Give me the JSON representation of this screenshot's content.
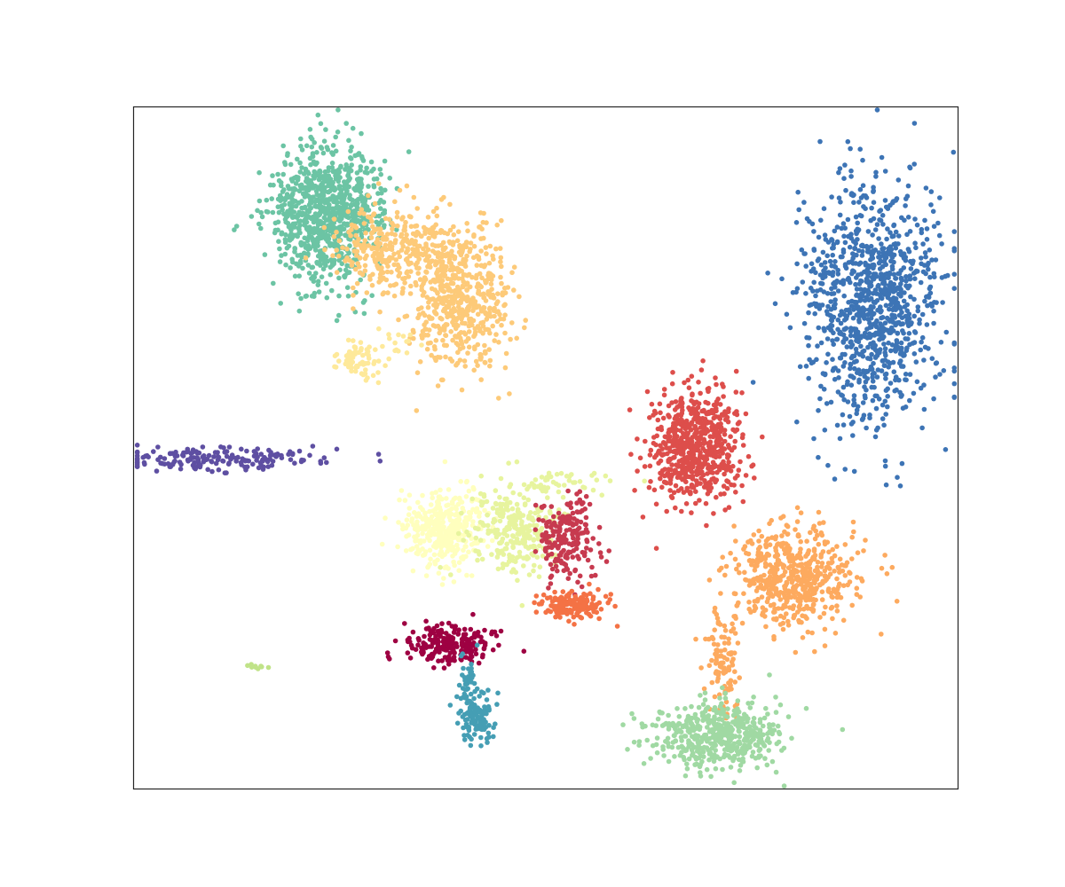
{
  "chart_data": {
    "type": "scatter",
    "title": "",
    "xlabel": "",
    "ylabel": "",
    "xlim": [
      0,
      100
    ],
    "ylim": [
      0,
      100
    ],
    "grid": false,
    "legend": "none",
    "axes_ticks": false,
    "series": [
      {
        "color": "#6cc4a4",
        "approx_points": 900,
        "clusters": [
          {
            "cx": 23,
            "cy": 84,
            "sx": 3.2,
            "sy": 5.0,
            "n": 800
          },
          {
            "cx": 27.5,
            "cy": 86,
            "sx": 2.5,
            "sy": 3.5,
            "n": 100
          }
        ]
      },
      {
        "color": "#fdca79",
        "approx_points": 850,
        "clusters": [
          {
            "cx": 39.5,
            "cy": 72,
            "sx": 3.0,
            "sy": 5.5,
            "n": 550
          },
          {
            "cx": 31.5,
            "cy": 79,
            "sx": 3.5,
            "sy": 3.0,
            "n": 300
          }
        ]
      },
      {
        "color": "#fee99a",
        "approx_points": 80,
        "clusters": [
          {
            "cx": 27.5,
            "cy": 62.5,
            "sx": 1.3,
            "sy": 1.6,
            "n": 60
          },
          {
            "cx": 31,
            "cy": 65.5,
            "sx": 2.0,
            "sy": 1.0,
            "n": 20
          }
        ]
      },
      {
        "color": "#3d74b5",
        "approx_points": 1000,
        "clusters": [
          {
            "cx": 89.5,
            "cy": 71,
            "sx": 4.0,
            "sy": 8.5,
            "n": 1000
          }
        ]
      },
      {
        "color": "#5e4fa2",
        "approx_points": 180,
        "clusters": [
          {
            "cx": 10,
            "cy": 48.5,
            "sx": 6.0,
            "sy": 0.9,
            "n": 180
          }
        ]
      },
      {
        "color": "#dd4e4b",
        "approx_points": 650,
        "clusters": [
          {
            "cx": 68,
            "cy": 50.5,
            "sx": 2.8,
            "sy": 4.0,
            "n": 650
          }
        ]
      },
      {
        "color": "#ffffbe",
        "approx_points": 350,
        "clusters": [
          {
            "cx": 37.5,
            "cy": 38.5,
            "sx": 2.5,
            "sy": 3.0,
            "n": 350
          }
        ]
      },
      {
        "color": "#e7f49e",
        "approx_points": 300,
        "clusters": [
          {
            "cx": 46,
            "cy": 38,
            "sx": 2.8,
            "sy": 3.5,
            "n": 260
          },
          {
            "cx": 52,
            "cy": 45,
            "sx": 4.0,
            "sy": 0.8,
            "n": 40
          }
        ]
      },
      {
        "color": "#c73a4f",
        "approx_points": 200,
        "clusters": [
          {
            "cx": 52.5,
            "cy": 37,
            "sx": 1.6,
            "sy": 3.0,
            "n": 200
          }
        ]
      },
      {
        "color": "#f47245",
        "approx_points": 150,
        "clusters": [
          {
            "cx": 53.5,
            "cy": 27,
            "sx": 2.0,
            "sy": 1.0,
            "n": 150
          }
        ]
      },
      {
        "color": "#fdaa5f",
        "approx_points": 650,
        "clusters": [
          {
            "cx": 80,
            "cy": 31,
            "sx": 3.8,
            "sy": 4.0,
            "n": 550
          },
          {
            "cx": 71.5,
            "cy": 19,
            "sx": 1.0,
            "sy": 4.0,
            "n": 100
          }
        ]
      },
      {
        "color": "#a0d9a3",
        "approx_points": 500,
        "clusters": [
          {
            "cx": 71,
            "cy": 8,
            "sx": 4.0,
            "sy": 2.5,
            "n": 500
          }
        ]
      },
      {
        "color": "#9e0142",
        "approx_points": 200,
        "clusters": [
          {
            "cx": 38,
            "cy": 21.5,
            "sx": 3.0,
            "sy": 1.5,
            "n": 200
          }
        ]
      },
      {
        "color": "#459eb4",
        "approx_points": 160,
        "clusters": [
          {
            "cx": 41.5,
            "cy": 10.5,
            "sx": 1.0,
            "sy": 2.0,
            "n": 120
          },
          {
            "cx": 40.5,
            "cy": 16,
            "sx": 0.5,
            "sy": 2.0,
            "n": 40
          }
        ]
      },
      {
        "color": "#c0e388",
        "approx_points": 10,
        "clusters": [
          {
            "cx": 15,
            "cy": 18,
            "sx": 0.6,
            "sy": 0.3,
            "n": 10
          }
        ]
      }
    ]
  }
}
